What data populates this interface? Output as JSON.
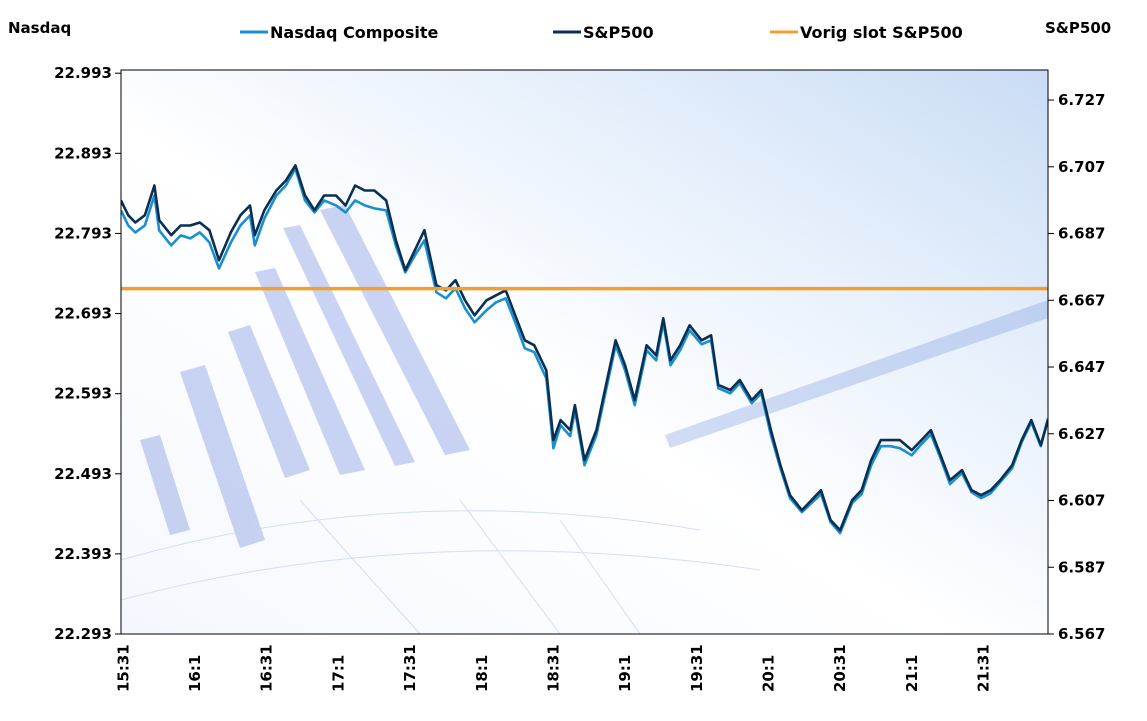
{
  "chart_data": {
    "type": "line",
    "title": "",
    "left_axis_label": "Nasdaq",
    "right_axis_label": "S&P500",
    "x_unit": "minutes after 15:30",
    "xlim": [
      0,
      388
    ],
    "ylim_left": [
      22.293,
      22.997
    ],
    "ylim_right": [
      6.567,
      6.736
    ],
    "left_ticks": [
      "22.993",
      "22.893",
      "22.793",
      "22.693",
      "22.593",
      "22.493",
      "22.393",
      "22.293"
    ],
    "left_tick_values": [
      22.993,
      22.893,
      22.793,
      22.693,
      22.593,
      22.493,
      22.393,
      22.293
    ],
    "right_ticks": [
      "6.727",
      "6.707",
      "6.687",
      "6.667",
      "6.647",
      "6.627",
      "6.607",
      "6.587",
      "6.567"
    ],
    "right_tick_values": [
      6.727,
      6.707,
      6.687,
      6.667,
      6.647,
      6.627,
      6.607,
      6.587,
      6.567
    ],
    "x_ticks": [
      "15:31",
      "16:1",
      "16:31",
      "17:1",
      "17:31",
      "18:1",
      "18:31",
      "19:1",
      "19:31",
      "20:1",
      "20:31",
      "21:1",
      "21:31"
    ],
    "x_tick_values": [
      1,
      31,
      61,
      91,
      121,
      151,
      181,
      211,
      241,
      271,
      301,
      331,
      361
    ],
    "legend_position": "top",
    "x": [
      0,
      3,
      6,
      10,
      14,
      16,
      21,
      25,
      29,
      33,
      37,
      41,
      46,
      50,
      54,
      56,
      60,
      65,
      69,
      73,
      77,
      81,
      85,
      90,
      94,
      98,
      102,
      106,
      111,
      115,
      119,
      123,
      127,
      132,
      136,
      140,
      144,
      148,
      153,
      157,
      161,
      165,
      169,
      173,
      178,
      181,
      184,
      188,
      190,
      194,
      199,
      203,
      207,
      211,
      215,
      220,
      224,
      227,
      230,
      234,
      238,
      243,
      247,
      250,
      255,
      259,
      264,
      268,
      272,
      276,
      280,
      285,
      289,
      293,
      297,
      301,
      306,
      310,
      314,
      318,
      322,
      326,
      331,
      335,
      339,
      343,
      347,
      352,
      356,
      360,
      364,
      368,
      373,
      377,
      381,
      385,
      388
    ],
    "series": [
      {
        "name": "Nasdaq Composite",
        "axis": "left",
        "color": "#1a8fd0",
        "values": [
          22.8217,
          22.803,
          22.7943,
          22.803,
          22.8404,
          22.7968,
          22.7781,
          22.7905,
          22.7868,
          22.7943,
          22.7818,
          22.7494,
          22.7818,
          22.803,
          22.8155,
          22.7781,
          22.8118,
          22.8404,
          22.8529,
          22.8741,
          22.8342,
          22.8192,
          22.8342,
          22.828,
          22.8192,
          22.8342,
          22.828,
          22.8242,
          22.8217,
          22.7781,
          22.7444,
          22.7656,
          22.7843,
          22.7195,
          22.712,
          22.7245,
          22.6995,
          22.6821,
          22.697,
          22.707,
          22.712,
          22.6821,
          22.6496,
          22.6447,
          22.6122,
          22.5249,
          22.5536,
          22.5399,
          22.5723,
          22.5037,
          22.5412,
          22.5973,
          22.6534,
          22.6222,
          22.5786,
          22.6471,
          22.6347,
          22.6821,
          22.6284,
          22.6471,
          22.6721,
          22.6546,
          22.6596,
          22.5998,
          22.5935,
          22.606,
          22.5811,
          22.5935,
          22.5412,
          22.5,
          22.4626,
          22.4451,
          22.4564,
          22.4676,
          22.4327,
          22.4189,
          22.4564,
          22.4676,
          22.5037,
          22.5274,
          22.5274,
          22.5249,
          22.5162,
          22.5299,
          22.5424,
          22.5125,
          22.4801,
          22.4938,
          22.4701,
          22.4626,
          22.4688,
          22.4825,
          22.5,
          22.5324,
          22.5574,
          22.5274,
          22.5624
        ]
      },
      {
        "name": "S&P500",
        "axis": "right",
        "color": "#0b2f52",
        "values": [
          6.6969,
          6.6925,
          6.6903,
          6.6925,
          6.7014,
          6.691,
          6.6865,
          6.6894,
          6.6894,
          6.6903,
          6.688,
          6.679,
          6.6874,
          6.6925,
          6.6954,
          6.6865,
          6.694,
          6.6999,
          6.7029,
          6.7074,
          6.6984,
          6.694,
          6.6984,
          6.6984,
          6.6954,
          6.7014,
          6.6999,
          6.6999,
          6.6969,
          6.685,
          6.676,
          6.682,
          6.688,
          6.6715,
          6.67,
          6.673,
          6.667,
          6.6625,
          6.667,
          6.6685,
          6.67,
          6.6625,
          6.655,
          6.6535,
          6.646,
          6.6251,
          6.6311,
          6.6281,
          6.6356,
          6.6191,
          6.6281,
          6.6416,
          6.655,
          6.6475,
          6.6371,
          6.6535,
          6.6505,
          6.6616,
          6.649,
          6.6535,
          6.6595,
          6.655,
          6.6565,
          6.6416,
          6.6401,
          6.6431,
          6.6371,
          6.6401,
          6.6281,
          6.6176,
          6.6086,
          6.6041,
          6.6071,
          6.6101,
          6.6011,
          6.5981,
          6.6071,
          6.6101,
          6.6191,
          6.6251,
          6.6251,
          6.6251,
          6.6221,
          6.6251,
          6.6281,
          6.6206,
          6.6131,
          6.6161,
          6.6101,
          6.6086,
          6.6101,
          6.6131,
          6.6176,
          6.6251,
          6.6311,
          6.6236,
          6.6311
        ]
      },
      {
        "name": "Vorig slot S&P500",
        "axis": "right",
        "color": "#f0a030",
        "constant": 6.6705
      }
    ]
  }
}
